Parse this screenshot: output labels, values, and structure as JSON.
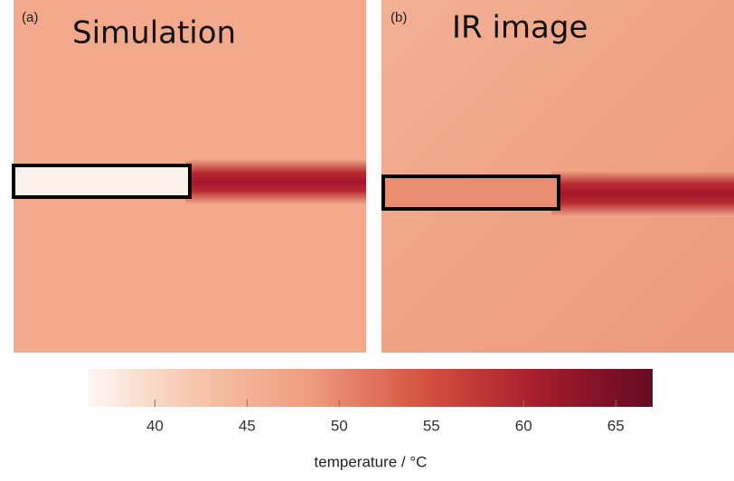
{
  "panels": [
    {
      "tag": "(a)",
      "title": "Simulation"
    },
    {
      "tag": "(b)",
      "title": "IR image"
    }
  ],
  "colorbar": {
    "label": "temperature / °C",
    "lim": [
      36.4,
      67
    ],
    "ticks": [
      40,
      45,
      50,
      55,
      60,
      65
    ],
    "colors": [
      "#fdf7f3",
      "#f6c3a8",
      "#ee9a7c",
      "#d4503f",
      "#a51c2c",
      "#650a22"
    ]
  }
}
